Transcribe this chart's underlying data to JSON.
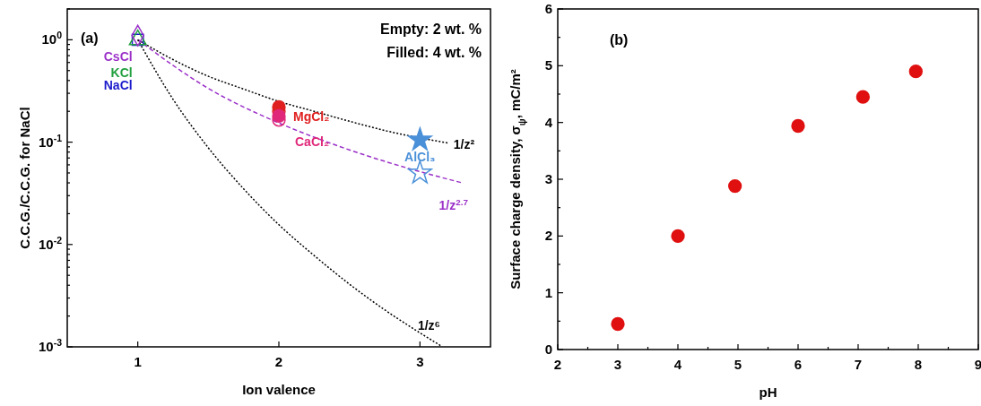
{
  "chart_data": [
    {
      "type": "scatter",
      "xlabel": "Ion valence",
      "ylabel": "C.C.G./C.C.G. for NaCl",
      "log": "y",
      "xlim": [
        0.5,
        3.5
      ],
      "xticks": [
        1,
        2,
        3
      ],
      "ylim": [
        0.001,
        2
      ],
      "yticks": [
        {
          "value": 0.001,
          "label": "10$^{-3}$"
        },
        {
          "value": 0.002,
          "label": null
        },
        {
          "value": 0.003,
          "label": null
        },
        {
          "value": 0.004,
          "label": null
        },
        {
          "value": 0.005,
          "label": null
        },
        {
          "value": 0.006,
          "label": null
        },
        {
          "value": 0.007,
          "label": null
        },
        {
          "value": 0.008,
          "label": null
        },
        {
          "value": 0.009,
          "label": null
        },
        {
          "value": 0.01,
          "label": "10$^{-2}$"
        },
        {
          "value": 0.02,
          "label": null
        },
        {
          "value": 0.03,
          "label": null
        },
        {
          "value": 0.04,
          "label": null
        },
        {
          "value": 0.05,
          "label": null
        },
        {
          "value": 0.06,
          "label": null
        },
        {
          "value": 0.07,
          "label": null
        },
        {
          "value": 0.08,
          "label": null
        },
        {
          "value": 0.09,
          "label": null
        },
        {
          "value": 0.1,
          "label": "10$^{-1}$"
        },
        {
          "value": 0.2,
          "label": null
        },
        {
          "value": 0.3,
          "label": null
        },
        {
          "value": 0.4,
          "label": null
        },
        {
          "value": 0.5,
          "label": null
        },
        {
          "value": 0.6,
          "label": null
        },
        {
          "value": 0.7,
          "label": null
        },
        {
          "value": 0.8,
          "label": null
        },
        {
          "value": 0.9,
          "label": null
        },
        {
          "value": 1,
          "label": "10$^{0}$"
        },
        {
          "value": 2,
          "label": null
        }
      ],
      "grid": false,
      "annotations": [
        "(a)",
        "Empty: 2 wt. %",
        "Filled: 4 wt. %"
      ],
      "series": [
        {
          "name": "1/z²",
          "type": "line",
          "line_style": "dotted",
          "color": "#000000",
          "x": [
            1,
            1.25,
            1.5,
            1.75,
            2,
            2.25,
            2.5,
            2.75,
            3.2
          ],
          "values": [
            1,
            0.64,
            0.44,
            0.33,
            0.25,
            0.2,
            0.16,
            0.13,
            0.098
          ]
        },
        {
          "name": "1/z$^{2.7}$",
          "type": "line",
          "line_style": "dashed",
          "color": "#9b30c8",
          "x": [
            1,
            1.5,
            2,
            2.5,
            3,
            3.3
          ],
          "values": [
            1,
            0.335,
            0.154,
            0.084,
            0.0515,
            0.04
          ]
        },
        {
          "name": "1/z⁶",
          "type": "line",
          "line_style": "dotted",
          "color": "#000000",
          "x": [
            1,
            1.25,
            1.5,
            1.75,
            2,
            2.25,
            2.5,
            2.75,
            3,
            3.15
          ],
          "values": [
            1,
            0.262,
            0.088,
            0.035,
            0.0156,
            0.0078,
            0.0041,
            0.0023,
            0.00137,
            0.00102
          ]
        },
        {
          "name": "NaCl",
          "marker": "square",
          "color": "#1a1acc",
          "x": [
            1
          ],
          "values": [
            1.0
          ]
        },
        {
          "name": "KCl",
          "marker": "triangle",
          "color": "#22a040",
          "x": [
            1
          ],
          "values": [
            1.0
          ]
        },
        {
          "name": "CsCl",
          "marker": "diamond",
          "color": "#9b30c8",
          "x": [
            1
          ],
          "values": [
            1.1
          ]
        },
        {
          "name": "MgCl₂",
          "marker": "circle",
          "color": "#e02020",
          "x": [
            2,
            2
          ],
          "values": [
            0.22,
            0.2
          ]
        },
        {
          "name": "CaCl₂",
          "marker": "circle",
          "color": "#e0287a",
          "x": [
            2,
            2
          ],
          "values": [
            0.18,
            0.165
          ]
        },
        {
          "name": "AlCl₃",
          "marker": "star",
          "color": "#4a90d9",
          "x": [
            3,
            3
          ],
          "values": [
            0.105,
            0.05
          ]
        }
      ]
    },
    {
      "type": "scatter",
      "xlabel": "pH",
      "ylabel": "Surface charge density, σ$_{ψ}$, mC/m²",
      "xlim": [
        2,
        9
      ],
      "ylim": [
        0,
        6
      ],
      "xticks": [
        2,
        {
          "value": 2.5,
          "label": null
        },
        3,
        {
          "value": 3.5,
          "label": null
        },
        4,
        {
          "value": 4.5,
          "label": null
        },
        5,
        {
          "value": 5.5,
          "label": null
        },
        6,
        {
          "value": 6.5,
          "label": null
        },
        7,
        {
          "value": 7.5,
          "label": null
        },
        8,
        {
          "value": 8.5,
          "label": null
        },
        9
      ],
      "yticks": [
        0,
        {
          "value": 0.5,
          "label": null
        },
        1,
        {
          "value": 1.5,
          "label": null
        },
        2,
        {
          "value": 2.5,
          "label": null
        },
        3,
        {
          "value": 3.5,
          "label": null
        },
        4,
        {
          "value": 4.5,
          "label": null
        },
        5,
        {
          "value": 5.5,
          "label": null
        },
        6
      ],
      "grid": false,
      "marker": "circle",
      "annotations": [
        "(b)"
      ],
      "series": [
        {
          "color": "#e01010",
          "x": [
            3,
            4,
            4.95,
            6,
            7.08,
            7.96
          ],
          "values": [
            0.45,
            2.0,
            2.88,
            3.94,
            4.45,
            4.9
          ]
        }
      ]
    }
  ]
}
